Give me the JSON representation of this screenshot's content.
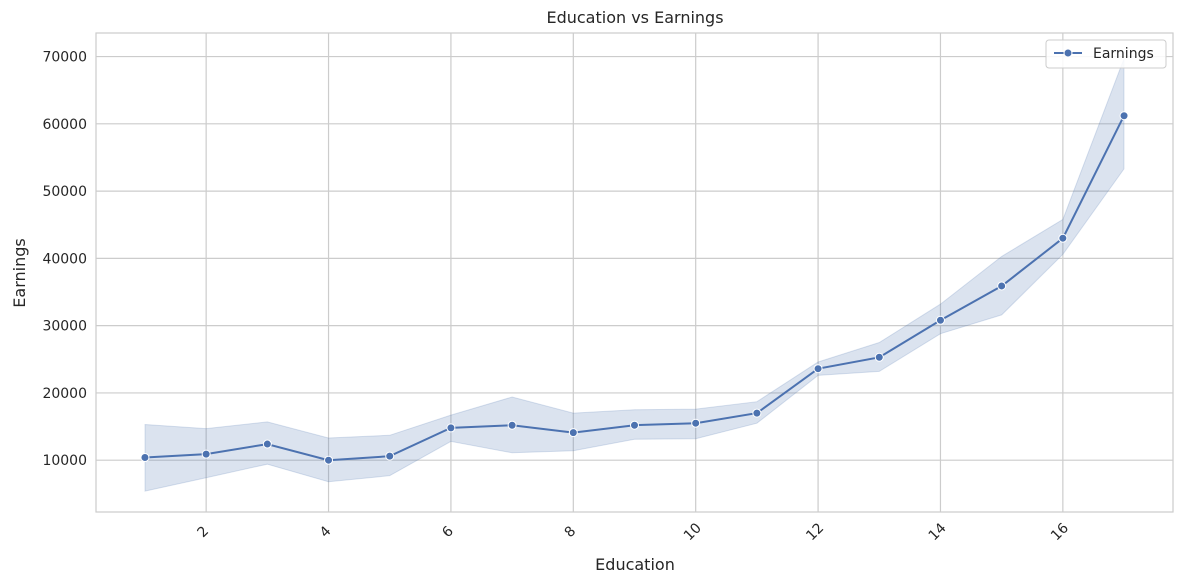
{
  "chart_data": {
    "type": "line",
    "title": "Education vs Earnings",
    "xlabel": "Education",
    "ylabel": "Earnings",
    "x": [
      1,
      2,
      3,
      4,
      5,
      6,
      7,
      8,
      9,
      10,
      11,
      12,
      13,
      14,
      15,
      16,
      17
    ],
    "xlim": [
      0.2,
      17.8
    ],
    "ylim": [
      2300,
      73500
    ],
    "xticks": [
      2,
      4,
      6,
      8,
      10,
      12,
      14,
      16
    ],
    "yticks": [
      10000,
      20000,
      30000,
      40000,
      50000,
      60000,
      70000
    ],
    "grid": true,
    "legend_position": "top-right",
    "series": [
      {
        "name": "Earnings",
        "color": "#4c72b0",
        "marker": "circle",
        "values": [
          10400,
          10900,
          12400,
          10000,
          10600,
          14800,
          15200,
          14100,
          15200,
          15500,
          17000,
          23600,
          25300,
          30800,
          35900,
          43000,
          61200
        ],
        "ci_lower": [
          5400,
          7400,
          9400,
          6800,
          7700,
          12800,
          11100,
          11400,
          13100,
          13200,
          15500,
          22600,
          23200,
          28800,
          31600,
          40600,
          53300
        ],
        "ci_upper": [
          15300,
          14700,
          15700,
          13300,
          13700,
          16700,
          19400,
          17000,
          17500,
          17600,
          18700,
          24600,
          27500,
          33200,
          40300,
          45800,
          69700
        ]
      }
    ]
  }
}
